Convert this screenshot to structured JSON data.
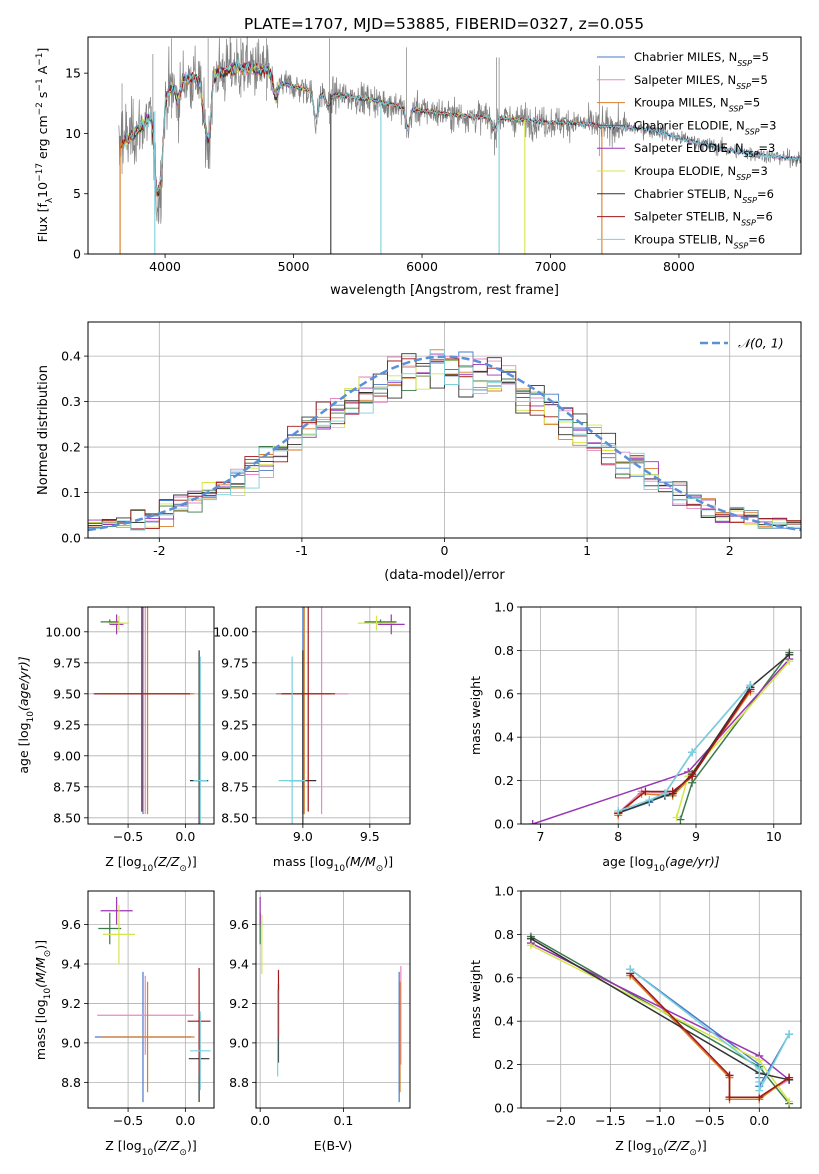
{
  "page": {
    "title": "PLATE=1707, MJD=53885, FIBERID=0327, z=0.055"
  },
  "series_styles": [
    {
      "name": "Chabrier MILES",
      "nssp": "5",
      "color": "#4a7ac8"
    },
    {
      "name": "Salpeter MILES",
      "nssp": "5",
      "color": "#e78ac3"
    },
    {
      "name": "Kroupa MILES",
      "nssp": "5",
      "color": "#d97f28"
    },
    {
      "name": "Chabrier ELODIE",
      "nssp": "3",
      "color": "#3d7a4a"
    },
    {
      "name": "Salpeter ELODIE",
      "nssp": "3",
      "color": "#9b35b5"
    },
    {
      "name": "Kroupa ELODIE",
      "nssp": "3",
      "color": "#d4e64a"
    },
    {
      "name": "Chabrier STELIB",
      "nssp": "6",
      "color": "#333333"
    },
    {
      "name": "Salpeter STELIB",
      "nssp": "6",
      "color": "#a01818"
    },
    {
      "name": "Kroupa STELIB",
      "nssp": "6",
      "color": "#7ad0dd"
    }
  ],
  "chart_data": [
    {
      "id": "spectrum",
      "type": "line",
      "title": "PLATE=1707, MJD=53885, FIBERID=0327, z=0.055",
      "xlabel": "wavelength [Angstrom, rest frame]",
      "ylabel_parts": [
        "Flux [f",
        "λ",
        "10",
        "−17",
        " erg cm",
        "−2",
        " s",
        "−1",
        " A",
        "−1",
        "]"
      ],
      "xlim": [
        3400,
        8950
      ],
      "ylim": [
        0,
        18
      ],
      "xticks": [
        4000,
        5000,
        6000,
        7000,
        8000
      ],
      "yticks": [
        0,
        5,
        10,
        15
      ],
      "data_color": "#808080",
      "legend_position": "top-right",
      "continuum": {
        "x": [
          3650,
          3700,
          3800,
          3900,
          4000,
          4100,
          4200,
          4300,
          4400,
          4500,
          4600,
          4700,
          4800,
          4900,
          5000,
          5200,
          5400,
          5600,
          5800,
          6000,
          6200,
          6400,
          6600,
          6800,
          7000,
          7200,
          7400,
          7600,
          7800,
          8000,
          8200,
          8400,
          8600,
          8800,
          8950
        ],
        "y": [
          9.0,
          9.5,
          10.4,
          11.5,
          13.2,
          14.3,
          14.6,
          14.4,
          15.0,
          15.3,
          15.5,
          15.4,
          15.2,
          14.2,
          13.9,
          13.4,
          13.1,
          12.8,
          12.3,
          11.9,
          11.6,
          11.4,
          11.3,
          11.1,
          10.9,
          10.9,
          10.6,
          10.5,
          10.3,
          9.6,
          9.1,
          8.6,
          8.3,
          8.0,
          7.9
        ]
      },
      "absorption_lines": [
        {
          "x": 3934,
          "depth": 0.55
        },
        {
          "x": 3969,
          "depth": 0.45
        },
        {
          "x": 4102,
          "depth": 0.12
        },
        {
          "x": 4305,
          "depth": 0.2
        },
        {
          "x": 4340,
          "depth": 0.35
        },
        {
          "x": 4861,
          "depth": 0.12
        },
        {
          "x": 5175,
          "depth": 0.18
        },
        {
          "x": 5270,
          "depth": 0.08
        },
        {
          "x": 5890,
          "depth": 0.15
        },
        {
          "x": 6563,
          "depth": 0.1
        }
      ],
      "model_gaps": [
        {
          "x": 3650,
          "series": "Kroupa MILES"
        },
        {
          "x": 3920,
          "series": "Kroupa STELIB"
        },
        {
          "x": 5290,
          "series": "Chabrier STELIB"
        },
        {
          "x": 5680,
          "series": "Kroupa STELIB"
        },
        {
          "x": 6600,
          "series": "Kroupa STELIB"
        },
        {
          "x": 6800,
          "series": "Kroupa ELODIE"
        },
        {
          "x": 7400,
          "series": "Kroupa MILES"
        }
      ]
    },
    {
      "id": "residuals",
      "type": "step",
      "xlabel": "(data-model)/error",
      "ylabel": "Normed distribution",
      "xlim": [
        -2.5,
        2.5
      ],
      "ylim": [
        0,
        0.475
      ],
      "xticks": [
        -2,
        -1,
        0,
        1,
        2
      ],
      "yticks": [
        0.0,
        0.1,
        0.2,
        0.3,
        0.4
      ],
      "bin_width": 0.1,
      "gaussian": {
        "label": "𝒩(0, 1)",
        "color": "#5b8fd9",
        "mean": 0,
        "sigma": 1
      },
      "legend_position": "top-right"
    },
    {
      "id": "age-vs-Z",
      "type": "errorbar",
      "xlabel_parts": [
        "Z [log",
        "10",
        "(Z/Z",
        "⊙",
        ")]"
      ],
      "ylabel_parts": [
        "age  [log",
        "10",
        "(age/yr)]"
      ],
      "xlim": [
        -0.85,
        0.25
      ],
      "ylim": [
        8.45,
        10.2
      ],
      "xticks": [
        -0.5,
        0.0
      ],
      "yticks": [
        8.5,
        8.75,
        9.0,
        9.25,
        9.5,
        9.75,
        10.0
      ],
      "xtick_labels": [
        "−0.5",
        "0.0"
      ],
      "ytick_labels": [
        "8.50",
        "8.75",
        "9.00",
        "9.25",
        "9.50",
        "9.75",
        "10.00"
      ],
      "points": [
        {
          "series": "Chabrier MILES",
          "x": -0.37,
          "xerr": 0.42,
          "y": 9.5,
          "yerr": 0.97
        },
        {
          "series": "Salpeter MILES",
          "x": -0.35,
          "xerr": 0.42,
          "y": 9.5,
          "yerr": 0.97
        },
        {
          "series": "Kroupa MILES",
          "x": -0.33,
          "xerr": 0.41,
          "y": 9.5,
          "yerr": 0.97
        },
        {
          "series": "Chabrier ELODIE",
          "x": -0.66,
          "xerr": 0.08,
          "y": 10.08,
          "yerr": 0.02
        },
        {
          "series": "Salpeter ELODIE",
          "x": -0.6,
          "xerr": 0.06,
          "y": 10.06,
          "yerr": 0.08
        },
        {
          "series": "Kroupa ELODIE",
          "x": -0.58,
          "xerr": 0.09,
          "y": 10.07,
          "yerr": 0.06
        },
        {
          "series": "Chabrier STELIB",
          "x": 0.12,
          "xerr": 0.08,
          "y": 8.8,
          "yerr": 1.05
        },
        {
          "series": "Salpeter STELIB",
          "x": -0.38,
          "xerr": 0.42,
          "y": 9.5,
          "yerr": 0.95
        },
        {
          "series": "Kroupa STELIB",
          "x": 0.13,
          "xerr": 0.06,
          "y": 8.8,
          "yerr": 1.0
        }
      ]
    },
    {
      "id": "age-vs-mass",
      "type": "errorbar",
      "xlabel_parts": [
        "mass [log",
        "10",
        "(M/M",
        "⊙",
        ")]"
      ],
      "ylabel_parts": [],
      "xlim": [
        8.65,
        9.8
      ],
      "ylim": [
        8.45,
        10.2
      ],
      "xticks": [
        9.0,
        9.5
      ],
      "yticks": [
        8.5,
        8.75,
        9.0,
        9.25,
        9.5,
        9.75,
        10.0
      ],
      "xtick_labels": [
        "9.0",
        "9.5"
      ],
      "ytick_labels": [
        "8.50",
        "8.75",
        "9.00",
        "9.25",
        "9.50",
        "9.75",
        "10.00"
      ],
      "points": [
        {
          "series": "Chabrier MILES",
          "x": 9.0,
          "xerr": 0.2,
          "y": 9.5,
          "yerr": 0.97
        },
        {
          "series": "Salpeter MILES",
          "x": 9.14,
          "xerr": 0.2,
          "y": 9.5,
          "yerr": 0.97
        },
        {
          "series": "Kroupa MILES",
          "x": 9.01,
          "xerr": 0.2,
          "y": 9.5,
          "yerr": 0.97
        },
        {
          "series": "Chabrier ELODIE",
          "x": 9.58,
          "xerr": 0.12,
          "y": 10.08,
          "yerr": 0.02
        },
        {
          "series": "Salpeter ELODIE",
          "x": 9.66,
          "xerr": 0.1,
          "y": 10.06,
          "yerr": 0.08
        },
        {
          "series": "Kroupa ELODIE",
          "x": 9.55,
          "xerr": 0.14,
          "y": 10.07,
          "yerr": 0.06
        },
        {
          "series": "Chabrier STELIB",
          "x": 9.0,
          "xerr": 0.1,
          "y": 8.8,
          "yerr": 1.05
        },
        {
          "series": "Salpeter STELIB",
          "x": 9.04,
          "xerr": 0.2,
          "y": 9.5,
          "yerr": 0.95
        },
        {
          "series": "Kroupa STELIB",
          "x": 8.92,
          "xerr": 0.1,
          "y": 8.8,
          "yerr": 1.0
        }
      ]
    },
    {
      "id": "mass-weight-vs-age",
      "type": "line",
      "xlabel_parts": [
        "age  [log",
        "10",
        "(age/yr)]"
      ],
      "ylabel": "mass weight",
      "xlim": [
        6.75,
        10.35
      ],
      "ylim": [
        0,
        1.0
      ],
      "xticks": [
        7,
        8,
        9,
        10
      ],
      "yticks": [
        0.0,
        0.2,
        0.4,
        0.6,
        0.8,
        1.0
      ],
      "xtick_labels": [
        "7",
        "8",
        "9",
        "10"
      ],
      "ytick_labels": [
        "0.0",
        "0.2",
        "0.4",
        "0.6",
        "0.8",
        "1.0"
      ],
      "series": [
        {
          "name": "Chabrier MILES",
          "x": [
            8.0,
            8.4,
            8.6,
            8.95,
            9.7
          ],
          "y": [
            0.05,
            0.1,
            0.14,
            0.33,
            0.64
          ]
        },
        {
          "name": "Salpeter MILES",
          "x": [
            8.0,
            8.3,
            8.7,
            8.95,
            9.7
          ],
          "y": [
            0.05,
            0.15,
            0.14,
            0.22,
            0.62
          ]
        },
        {
          "name": "Kroupa MILES",
          "x": [
            8.0,
            8.3,
            8.7,
            8.95,
            9.7
          ],
          "y": [
            0.04,
            0.14,
            0.13,
            0.22,
            0.61
          ]
        },
        {
          "name": "Chabrier ELODIE",
          "x": [
            8.8,
            8.95,
            10.2
          ],
          "y": [
            0.02,
            0.19,
            0.79
          ]
        },
        {
          "name": "Salpeter ELODIE",
          "x": [
            6.9,
            8.9,
            10.2
          ],
          "y": [
            0.0,
            0.24,
            0.76
          ]
        },
        {
          "name": "Kroupa ELODIE",
          "x": [
            8.75,
            8.9,
            10.2
          ],
          "y": [
            0.03,
            0.22,
            0.75
          ]
        },
        {
          "name": "Chabrier STELIB",
          "x": [
            8.0,
            8.6,
            8.7,
            8.95,
            9.7,
            10.2
          ],
          "y": [
            0.05,
            0.13,
            0.14,
            0.23,
            0.63,
            0.78
          ]
        },
        {
          "name": "Salpeter STELIB",
          "x": [
            8.0,
            8.35,
            8.7,
            8.95,
            9.7
          ],
          "y": [
            0.05,
            0.15,
            0.15,
            0.22,
            0.62
          ]
        },
        {
          "name": "Kroupa STELIB",
          "x": [
            8.0,
            8.4,
            8.6,
            8.95,
            9.7
          ],
          "y": [
            0.06,
            0.11,
            0.14,
            0.33,
            0.64
          ]
        }
      ]
    },
    {
      "id": "mass-vs-Z",
      "type": "errorbar",
      "xlabel_parts": [
        "Z [log",
        "10",
        "(Z/Z",
        "⊙",
        ")]"
      ],
      "ylabel_parts": [
        "mass [log",
        "10",
        "(M/M",
        "⊙",
        ")]"
      ],
      "xlim": [
        -0.85,
        0.25
      ],
      "ylim": [
        8.67,
        9.77
      ],
      "xticks": [
        -0.5,
        0.0
      ],
      "yticks": [
        8.8,
        9.0,
        9.2,
        9.4,
        9.6
      ],
      "xtick_labels": [
        "−0.5",
        "0.0"
      ],
      "ytick_labels": [
        "8.8",
        "9.0",
        "9.2",
        "9.4",
        "9.6"
      ],
      "points": [
        {
          "series": "Chabrier MILES",
          "x": -0.37,
          "xerr": 0.42,
          "y": 9.03,
          "yerr": 0.33
        },
        {
          "series": "Salpeter MILES",
          "x": -0.35,
          "xerr": 0.42,
          "y": 9.14,
          "yerr": 0.2
        },
        {
          "series": "Kroupa MILES",
          "x": -0.33,
          "xerr": 0.41,
          "y": 9.03,
          "yerr": 0.28
        },
        {
          "series": "Chabrier ELODIE",
          "x": -0.66,
          "xerr": 0.1,
          "y": 9.58,
          "yerr": 0.08
        },
        {
          "series": "Salpeter ELODIE",
          "x": -0.6,
          "xerr": 0.14,
          "y": 9.67,
          "yerr": 0.07
        },
        {
          "series": "Kroupa ELODIE",
          "x": -0.58,
          "xerr": 0.14,
          "y": 9.55,
          "yerr": 0.15
        },
        {
          "series": "Chabrier STELIB",
          "x": 0.12,
          "xerr": 0.09,
          "y": 8.92,
          "yerr": 0.22
        },
        {
          "series": "Salpeter STELIB",
          "x": 0.12,
          "xerr": 0.1,
          "y": 9.11,
          "yerr": 0.27
        },
        {
          "series": "Kroupa STELIB",
          "x": 0.13,
          "xerr": 0.09,
          "y": 8.96,
          "yerr": 0.2
        }
      ]
    },
    {
      "id": "mass-vs-ebv",
      "type": "errorbar",
      "xlabel": "E(B-V)",
      "xlim": [
        -0.005,
        0.18
      ],
      "ylim": [
        8.67,
        9.77
      ],
      "xticks": [
        0.0,
        0.1
      ],
      "yticks": [
        8.8,
        9.0,
        9.2,
        9.4,
        9.6
      ],
      "xtick_labels": [
        "0.0",
        "0.1"
      ],
      "ytick_labels": [
        "8.8",
        "9.0",
        "9.2",
        "9.4",
        "9.6"
      ],
      "points": [
        {
          "series": "Chabrier MILES",
          "x": 0.167,
          "xerr": 0,
          "y": 9.03,
          "yerr": 0.33
        },
        {
          "series": "Salpeter MILES",
          "x": 0.169,
          "xerr": 0,
          "y": 9.14,
          "yerr": 0.25
        },
        {
          "series": "Kroupa MILES",
          "x": 0.168,
          "xerr": 0,
          "y": 9.03,
          "yerr": 0.28
        },
        {
          "series": "Chabrier ELODIE",
          "x": 0.0,
          "xerr": 0,
          "y": 9.58,
          "yerr": 0.08
        },
        {
          "series": "Salpeter ELODIE",
          "x": 0.0,
          "xerr": 0,
          "y": 9.67,
          "yerr": 0.07
        },
        {
          "series": "Kroupa ELODIE",
          "x": 0.002,
          "xerr": 0,
          "y": 9.5,
          "yerr": 0.15
        },
        {
          "series": "Chabrier STELIB",
          "x": 0.022,
          "xerr": 0,
          "y": 9.1,
          "yerr": 0.2
        },
        {
          "series": "Salpeter STELIB",
          "x": 0.022,
          "xerr": 0,
          "y": 9.2,
          "yerr": 0.17
        },
        {
          "series": "Kroupa STELIB",
          "x": 0.021,
          "xerr": 0,
          "y": 9.05,
          "yerr": 0.22
        }
      ]
    },
    {
      "id": "mass-weight-vs-Z",
      "type": "line",
      "xlabel_parts": [
        "Z [log",
        "10",
        "(Z/Z",
        "⊙",
        ")]"
      ],
      "ylabel": "mass weight",
      "xlim": [
        -2.4,
        0.42
      ],
      "ylim": [
        0,
        1.0
      ],
      "xticks": [
        -2.0,
        -1.5,
        -1.0,
        -0.5,
        0.0
      ],
      "yticks": [
        0.0,
        0.2,
        0.4,
        0.6,
        0.8,
        1.0
      ],
      "xtick_labels": [
        "−2.0",
        "−1.5",
        "−1.0",
        "−0.5",
        "0.0"
      ],
      "ytick_labels": [
        "0.0",
        "0.2",
        "0.4",
        "0.6",
        "0.8",
        "1.0"
      ],
      "series": [
        {
          "name": "Chabrier MILES",
          "x": [
            -1.3,
            0.0,
            0.0,
            0.0,
            0.3
          ],
          "y": [
            0.64,
            0.2,
            0.14,
            0.1,
            0.34
          ]
        },
        {
          "name": "Salpeter MILES",
          "x": [
            -1.3,
            -0.3,
            -0.3,
            0.0,
            0.3
          ],
          "y": [
            0.62,
            0.15,
            0.05,
            0.05,
            0.13
          ]
        },
        {
          "name": "Kroupa MILES",
          "x": [
            -1.3,
            -0.3,
            -0.3,
            0.0,
            0.3
          ],
          "y": [
            0.61,
            0.14,
            0.04,
            0.04,
            0.14
          ]
        },
        {
          "name": "Chabrier ELODIE",
          "x": [
            -2.3,
            0.0,
            0.3
          ],
          "y": [
            0.79,
            0.19,
            0.02
          ]
        },
        {
          "name": "Salpeter ELODIE",
          "x": [
            -2.3,
            0.0,
            0.3
          ],
          "y": [
            0.76,
            0.24,
            0.13
          ]
        },
        {
          "name": "Kroupa ELODIE",
          "x": [
            -2.3,
            0.0,
            0.3
          ],
          "y": [
            0.75,
            0.22,
            0.03
          ]
        },
        {
          "name": "Chabrier STELIB",
          "x": [
            -2.3,
            0.0,
            0.3
          ],
          "y": [
            0.78,
            0.16,
            0.13
          ]
        },
        {
          "name": "Salpeter STELIB",
          "x": [
            -1.3,
            -0.3,
            -0.3,
            0.0,
            0.3
          ],
          "y": [
            0.62,
            0.15,
            0.05,
            0.05,
            0.14
          ]
        },
        {
          "name": "Kroupa STELIB",
          "x": [
            -1.3,
            0.0,
            0.0,
            0.0,
            0.3
          ],
          "y": [
            0.64,
            0.18,
            0.12,
            0.08,
            0.34
          ]
        }
      ]
    }
  ]
}
